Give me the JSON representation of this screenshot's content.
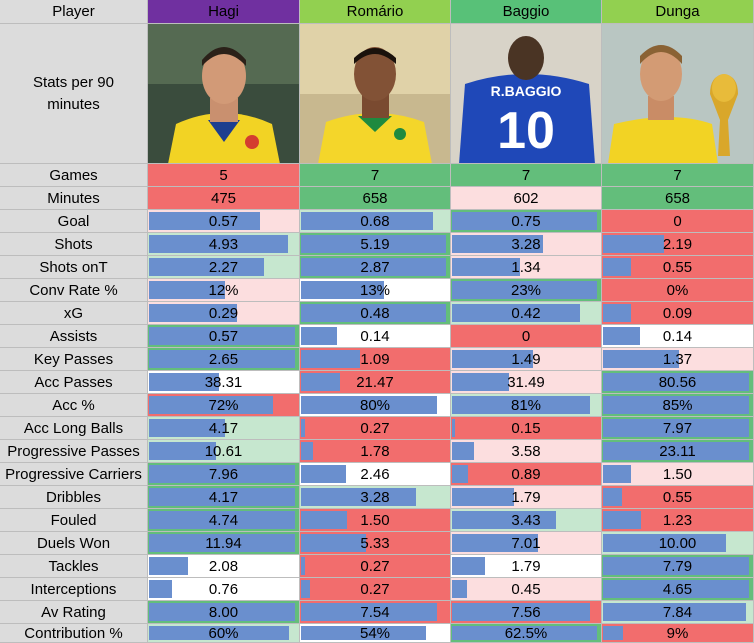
{
  "header": {
    "label": "Player",
    "players": [
      {
        "name": "Hagi",
        "color": "#7030a0"
      },
      {
        "name": "Romário",
        "color": "#92d050"
      },
      {
        "name": "Baggio",
        "color": "#58c178"
      },
      {
        "name": "Dunga",
        "color": "#92d050"
      }
    ]
  },
  "photo_row_label": "Stats per 90 minutes",
  "colors": {
    "bar": "#6a8fce",
    "red": "#f26d6d",
    "pink": "#fcdedf",
    "light_green": "#c6e7cf",
    "green": "#63be7b",
    "white": "#ffffff",
    "label_bg": "#dcdcdc"
  },
  "chart_data": {
    "type": "table",
    "columns": [
      "Hagi",
      "Romário",
      "Baggio",
      "Dunga"
    ],
    "rows": [
      {
        "stat": "Games",
        "values": [
          "5",
          "7",
          "7",
          "7"
        ],
        "bar": [
          null,
          null,
          null,
          null
        ],
        "bg": [
          "red",
          "green",
          "green",
          "green"
        ]
      },
      {
        "stat": "Minutes",
        "values": [
          "475",
          "658",
          "602",
          "658"
        ],
        "bar": [
          null,
          null,
          null,
          null
        ],
        "bg": [
          "red",
          "green",
          "pink",
          "green"
        ]
      },
      {
        "stat": "Goal",
        "values": [
          "0.57",
          "0.68",
          "0.75",
          "0"
        ],
        "bar": [
          0.76,
          0.91,
          1.0,
          0.0
        ],
        "bg": [
          "pink",
          "light_green",
          "green",
          "red"
        ]
      },
      {
        "stat": "Shots",
        "values": [
          "4.93",
          "5.19",
          "3.28",
          "2.19"
        ],
        "bar": [
          0.95,
          1.0,
          0.63,
          0.42
        ],
        "bg": [
          "light_green",
          "green",
          "pink",
          "red"
        ]
      },
      {
        "stat": "Shots onT",
        "values": [
          "2.27",
          "2.87",
          "1.34",
          "0.55"
        ],
        "bar": [
          0.79,
          1.0,
          0.47,
          0.19
        ],
        "bg": [
          "light_green",
          "green",
          "pink",
          "red"
        ]
      },
      {
        "stat": "Conv Rate %",
        "values": [
          "12%",
          "13%",
          "23%",
          "0%"
        ],
        "bar": [
          0.52,
          0.57,
          1.0,
          0.0
        ],
        "bg": [
          "pink",
          "white",
          "green",
          "red"
        ]
      },
      {
        "stat": "xG",
        "values": [
          "0.29",
          "0.48",
          "0.42",
          "0.09"
        ],
        "bar": [
          0.6,
          1.0,
          0.88,
          0.19
        ],
        "bg": [
          "pink",
          "green",
          "light_green",
          "red"
        ]
      },
      {
        "stat": "Assists",
        "values": [
          "0.57",
          "0.14",
          "0",
          "0.14"
        ],
        "bar": [
          1.0,
          0.25,
          0.0,
          0.25
        ],
        "bg": [
          "green",
          "white",
          "red",
          "white"
        ]
      },
      {
        "stat": "Key Passes",
        "values": [
          "2.65",
          "1.09",
          "1.49",
          "1.37"
        ],
        "bar": [
          1.0,
          0.41,
          0.56,
          0.52
        ],
        "bg": [
          "green",
          "red",
          "pink",
          "pink"
        ]
      },
      {
        "stat": "Acc Passes",
        "values": [
          "38.31",
          "21.47",
          "31.49",
          "80.56"
        ],
        "bar": [
          0.48,
          0.27,
          0.39,
          1.0
        ],
        "bg": [
          "white",
          "red",
          "pink",
          "green"
        ]
      },
      {
        "stat": "Acc %",
        "values": [
          "72%",
          "80%",
          "81%",
          "85%"
        ],
        "bar": [
          0.85,
          0.94,
          0.95,
          1.0
        ],
        "bg": [
          "red",
          "white",
          "light_green",
          "green"
        ]
      },
      {
        "stat": "Acc Long Balls",
        "values": [
          "4.17",
          "0.27",
          "0.15",
          "7.97"
        ],
        "bar": [
          0.52,
          0.03,
          0.02,
          1.0
        ],
        "bg": [
          "light_green",
          "red",
          "red",
          "green"
        ]
      },
      {
        "stat": "Progressive Passes",
        "values": [
          "10.61",
          "1.78",
          "3.58",
          "23.11"
        ],
        "bar": [
          0.46,
          0.08,
          0.15,
          1.0
        ],
        "bg": [
          "light_green",
          "red",
          "pink",
          "green"
        ]
      },
      {
        "stat": "Progressive Carriers",
        "values": [
          "7.96",
          "2.46",
          "0.89",
          "1.50"
        ],
        "bar": [
          1.0,
          0.31,
          0.11,
          0.19
        ],
        "bg": [
          "green",
          "white",
          "red",
          "pink"
        ]
      },
      {
        "stat": "Dribbles",
        "values": [
          "4.17",
          "3.28",
          "1.79",
          "0.55"
        ],
        "bar": [
          1.0,
          0.79,
          0.43,
          0.13
        ],
        "bg": [
          "green",
          "light_green",
          "pink",
          "red"
        ]
      },
      {
        "stat": "Fouled",
        "values": [
          "4.74",
          "1.50",
          "3.43",
          "1.23"
        ],
        "bar": [
          1.0,
          0.32,
          0.72,
          0.26
        ],
        "bg": [
          "green",
          "red",
          "light_green",
          "red"
        ]
      },
      {
        "stat": "Duels Won",
        "values": [
          "11.94",
          "5.33",
          "7.01",
          "10.00"
        ],
        "bar": [
          1.0,
          0.45,
          0.59,
          0.84
        ],
        "bg": [
          "green",
          "red",
          "pink",
          "light_green"
        ]
      },
      {
        "stat": "Tackles",
        "values": [
          "2.08",
          "0.27",
          "1.79",
          "7.79"
        ],
        "bar": [
          0.27,
          0.03,
          0.23,
          1.0
        ],
        "bg": [
          "white",
          "red",
          "white",
          "green"
        ]
      },
      {
        "stat": "Interceptions",
        "values": [
          "0.76",
          "0.27",
          "0.45",
          "4.65"
        ],
        "bar": [
          0.16,
          0.06,
          0.1,
          1.0
        ],
        "bg": [
          "white",
          "red",
          "pink",
          "green"
        ]
      },
      {
        "stat": "Av Rating",
        "values": [
          "8.00",
          "7.54",
          "7.56",
          "7.84"
        ],
        "bar": [
          1.0,
          0.94,
          0.95,
          0.98
        ],
        "bg": [
          "green",
          "red",
          "red",
          "light_green"
        ]
      },
      {
        "stat": "Contribution %",
        "values": [
          "60%",
          "54%",
          "62.5%",
          "9%"
        ],
        "bar": [
          0.96,
          0.86,
          1.0,
          0.14
        ],
        "bg": [
          "light_green",
          "white",
          "green",
          "red"
        ]
      }
    ]
  }
}
